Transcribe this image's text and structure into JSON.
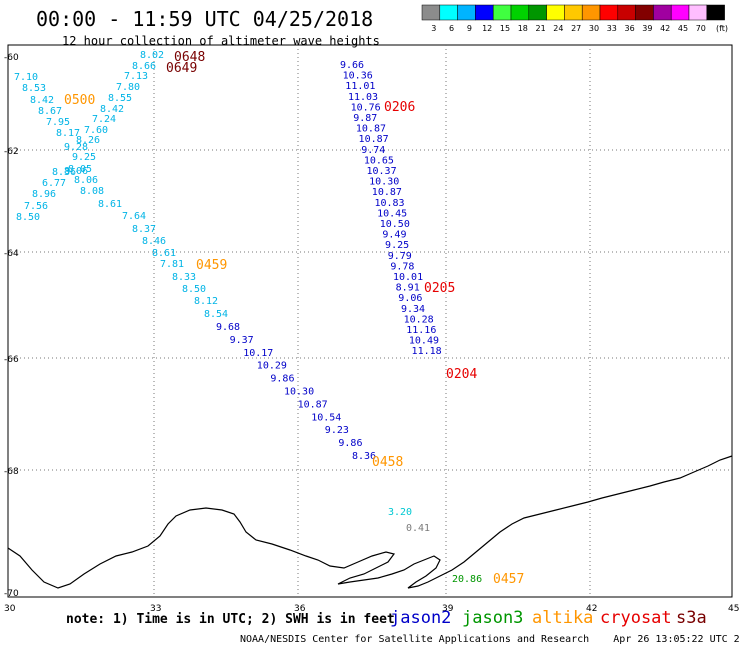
{
  "header": {
    "title": "00:00 - 11:59 UTC 04/25/2018",
    "subtitle": "12 hour collection of altimeter wave heights"
  },
  "legend": {
    "unit": "(ft)",
    "levels": [
      {
        "label": "3",
        "color": "#8c8c8c"
      },
      {
        "label": "6",
        "color": "#00ffff"
      },
      {
        "label": "9",
        "color": "#00b4ff"
      },
      {
        "label": "12",
        "color": "#0000ff"
      },
      {
        "label": "15",
        "color": "#40ff40"
      },
      {
        "label": "18",
        "color": "#00d200"
      },
      {
        "label": "21",
        "color": "#009600"
      },
      {
        "label": "24",
        "color": "#ffff00"
      },
      {
        "label": "27",
        "color": "#ffc800"
      },
      {
        "label": "30",
        "color": "#ff9600"
      },
      {
        "label": "33",
        "color": "#ff0000"
      },
      {
        "label": "36",
        "color": "#c80000"
      },
      {
        "label": "39",
        "color": "#820000"
      },
      {
        "label": "42",
        "color": "#a000a0"
      },
      {
        "label": "45",
        "color": "#ff00ff"
      },
      {
        "label": "70",
        "color": "#ffbeff"
      },
      {
        "label": "",
        "color": "#000000"
      }
    ]
  },
  "axes": {
    "lat_labels": [
      "-60",
      "-62",
      "-64",
      "-66",
      "-68",
      "-70"
    ],
    "lon_labels": [
      "30",
      "33",
      "36",
      "39",
      "42",
      "45"
    ]
  },
  "colors": {
    "jason2": "#0000c8",
    "jason3": "#009600",
    "altika": "#ff9600",
    "cryosat": "#e60000",
    "s3a": "#780000",
    "light": "#00b4e6",
    "gray": "#7a7a7a",
    "cyan": "#00c8d2"
  },
  "tracks": [
    {
      "name": "track-0500",
      "color": "light",
      "time": "0500",
      "time_color": "altika",
      "values": [
        "7.10",
        "8.53",
        "8.42",
        "8.67",
        "7.95",
        "8.17",
        "9.28",
        "8.36",
        "6.77",
        "8.96",
        "7.56",
        "8.50"
      ]
    },
    {
      "name": "track-0459",
      "color": "light",
      "time": "0459",
      "time_color": "altika",
      "values": [
        "8.02",
        "8.66",
        "7.13",
        "7.80",
        "8.55",
        "8.42",
        "7.24",
        "7.60",
        "8.26",
        "9.25",
        "8.06",
        "8.05",
        "8.06",
        "8.08",
        "8.61",
        "7.64",
        "8.37",
        "8.46",
        "8.61",
        "7.81",
        "8.33",
        "8.50",
        "8.12",
        "8.54"
      ]
    },
    {
      "name": "track-0458",
      "color": "jason2",
      "time": "0458",
      "time_color": "altika",
      "values": [
        "9.68",
        "9.37",
        "10.17",
        "10.29",
        "9.86",
        "10.30",
        "10.87",
        "10.54",
        "9.23",
        "9.86",
        "8.36"
      ]
    },
    {
      "name": "track-0206",
      "color": "jason2",
      "time": "0206",
      "time_color": "cryosat",
      "values": [
        "9.66",
        "10.36",
        "11.01",
        "11.03",
        "10.76",
        "9.87",
        "10.87",
        "10.87",
        "9.74",
        "10.65",
        "10.37",
        "10.30",
        "10.87",
        "10.83",
        "10.45",
        "10.50",
        "9.49",
        "9.25",
        "9.79",
        "9.78",
        "10.01",
        "8.91",
        "9.06",
        "9.34",
        "10.28",
        "11.16",
        "10.49",
        "11.18"
      ]
    },
    {
      "name": "time-s3a",
      "time": "0648",
      "time2": "0649",
      "time_color": "s3a"
    },
    {
      "name": "time-0205",
      "time": "0205",
      "time_color": "cryosat"
    },
    {
      "name": "time-0204",
      "time": "0204",
      "time_color": "cryosat"
    },
    {
      "name": "track-0457",
      "values": [
        "3.20",
        "0.41",
        "20.86"
      ],
      "time": "0457",
      "time_color": "altika"
    }
  ],
  "footer": {
    "note": "note: 1) Time is in UTC; 2) SWH is in feet",
    "satellites": [
      {
        "label": "jason2",
        "color": "#0000c8"
      },
      {
        "label": "jason3",
        "color": "#009600"
      },
      {
        "label": "altika",
        "color": "#ff9600"
      },
      {
        "label": "cryosat",
        "color": "#e60000"
      },
      {
        "label": "s3a",
        "color": "#780000"
      }
    ],
    "credit": "NOAA/NESDIS Center for Satellite Applications and Research    Apr 26 13:05:22 UTC 2018"
  }
}
